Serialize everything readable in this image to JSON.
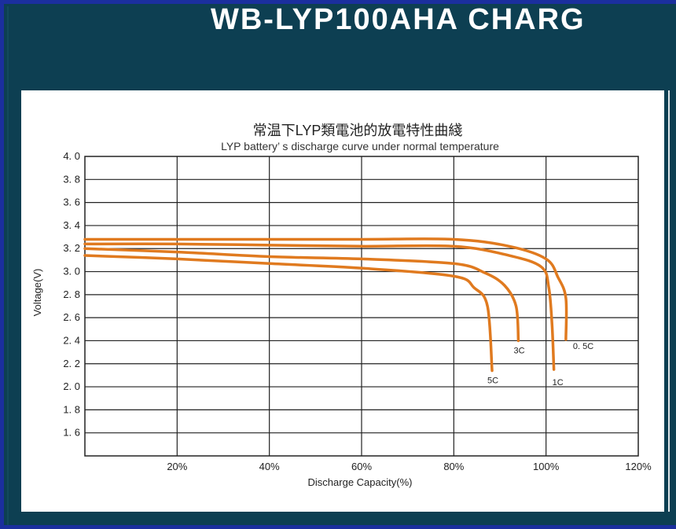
{
  "slide": {
    "title": "WB-LYP100AHA CHARG"
  },
  "chart_data": {
    "type": "line",
    "title": "常温下LYP類電池的放電特性曲綫",
    "subtitle": "LYP battery’ s discharge curve under normal temperature",
    "xlabel": "Discharge Capacity(%)",
    "ylabel": "Voltage(V)",
    "xlim": [
      0,
      120
    ],
    "ylim": [
      1.4,
      4.0
    ],
    "grid": true,
    "x_ticks": [
      20,
      40,
      60,
      80,
      100,
      120
    ],
    "x_tick_labels": [
      "20%",
      "40%",
      "60%",
      "80%",
      "100%",
      "120%"
    ],
    "y_ticks": [
      4.0,
      3.8,
      3.6,
      3.4,
      3.2,
      3.0,
      2.8,
      2.6,
      2.4,
      2.2,
      2.0,
      1.8,
      1.6
    ],
    "y_tick_labels": [
      "4. 0",
      "3. 8",
      "3. 6",
      "3. 4",
      "3. 2",
      "3. 0",
      "2. 8",
      "2. 6",
      "2. 4",
      "2. 2",
      "2. 0",
      "1. 8",
      "1. 6"
    ],
    "line_color": "#e07a1f",
    "series": [
      {
        "name": "0. 5C",
        "x": [
          0,
          20,
          40,
          60,
          80,
          92,
          100,
          102.6,
          104.3,
          104.3
        ],
        "y": [
          3.28,
          3.28,
          3.28,
          3.28,
          3.28,
          3.22,
          3.11,
          2.95,
          2.77,
          2.41
        ]
      },
      {
        "name": "1C",
        "x": [
          0,
          20,
          40,
          60,
          80,
          92,
          99,
          100.6,
          101.3,
          101.7
        ],
        "y": [
          3.24,
          3.24,
          3.23,
          3.22,
          3.22,
          3.14,
          3.04,
          2.86,
          2.54,
          2.15
        ]
      },
      {
        "name": "3C",
        "x": [
          0,
          20,
          40,
          60,
          80,
          86.7,
          91,
          93.5,
          94
        ],
        "y": [
          3.2,
          3.17,
          3.13,
          3.11,
          3.07,
          2.99,
          2.88,
          2.7,
          2.4
        ]
      },
      {
        "name": "5C",
        "x": [
          0,
          20,
          40,
          60,
          80,
          84.4,
          87.3,
          88.3
        ],
        "y": [
          3.14,
          3.11,
          3.07,
          3.03,
          2.96,
          2.86,
          2.7,
          2.14
        ]
      }
    ]
  }
}
